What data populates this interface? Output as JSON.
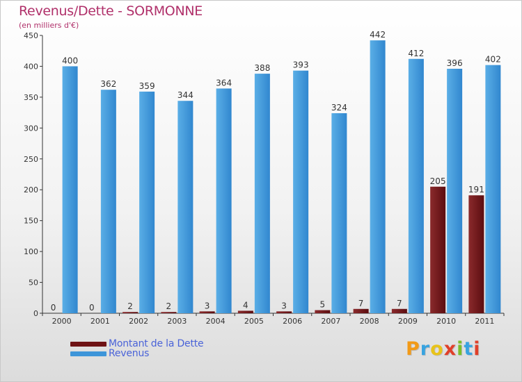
{
  "header": {
    "title": "Revenus/Dette - SORMONNE",
    "subtitle": "(en milliers d'€)"
  },
  "colors": {
    "debt": "#6e1214",
    "revenue": "#3d95d9",
    "title": "#b0306a",
    "legend_text": "#4a63d8"
  },
  "legend": {
    "items": [
      {
        "label": "Montant de la Dette",
        "color": "#6e1214"
      },
      {
        "label": "Revenus",
        "color": "#3d95d9"
      }
    ]
  },
  "logo": {
    "letters": [
      {
        "char": "P",
        "color": "#f29a17"
      },
      {
        "char": "r",
        "color": "#38a3e0"
      },
      {
        "char": "o",
        "color": "#e8c31a"
      },
      {
        "char": "x",
        "color": "#e0402a"
      },
      {
        "char": "i",
        "color": "#7bbf2a"
      },
      {
        "char": "t",
        "color": "#38a3e0"
      },
      {
        "char": "i",
        "color": "#e0402a"
      }
    ]
  },
  "chart_data": {
    "type": "bar",
    "title": "Revenus/Dette - SORMONNE",
    "subtitle": "(en milliers d'€)",
    "xlabel": "",
    "ylabel": "",
    "ylim": [
      0,
      450
    ],
    "yticks": [
      0,
      50,
      100,
      150,
      200,
      250,
      300,
      350,
      400,
      450
    ],
    "grid": false,
    "legend_position": "bottom-left",
    "categories": [
      "2000",
      "2001",
      "2002",
      "2003",
      "2004",
      "2005",
      "2006",
      "2007",
      "2008",
      "2009",
      "2010",
      "2011"
    ],
    "series": [
      {
        "name": "Montant de la Dette",
        "color": "#6e1214",
        "values": [
          0,
          0,
          2,
          2,
          3,
          4,
          3,
          5,
          7,
          7,
          205,
          191
        ]
      },
      {
        "name": "Revenus",
        "color": "#3d95d9",
        "values": [
          400,
          362,
          359,
          344,
          364,
          388,
          393,
          324,
          442,
          412,
          396,
          402
        ]
      }
    ]
  }
}
